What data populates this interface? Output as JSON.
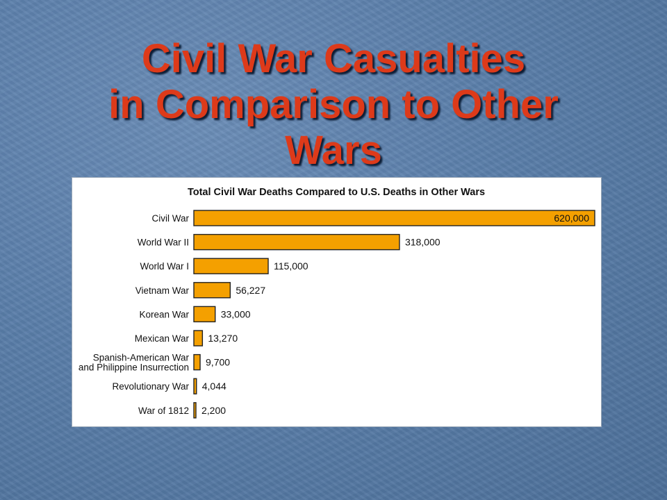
{
  "slide": {
    "title_lines": [
      "Civil War Casualties",
      "in Comparison to Other",
      "Wars"
    ]
  },
  "colors": {
    "background": "#5a7ea9",
    "title": "#dd3a1a",
    "bar": "#f4a000",
    "panel": "#ffffff"
  },
  "chart_data": {
    "type": "bar",
    "orientation": "horizontal",
    "title": "Total Civil War Deaths Compared to U.S. Deaths in Other Wars",
    "xlabel": "",
    "ylabel": "",
    "grid": false,
    "legend": "none",
    "xlim": [
      0,
      620000
    ],
    "categories": [
      [
        "Civil War"
      ],
      [
        "World War II"
      ],
      [
        "World War I"
      ],
      [
        "Vietnam War"
      ],
      [
        "Korean War"
      ],
      [
        "Mexican War"
      ],
      [
        "Spanish-American War",
        "and Philippine Insurrection"
      ],
      [
        "Revolutionary War"
      ],
      [
        "War of 1812"
      ]
    ],
    "values": [
      620000,
      318000,
      115000,
      56227,
      33000,
      13270,
      9700,
      4044,
      2200
    ],
    "value_labels": [
      "620,000",
      "318,000",
      "115,000",
      "56,227",
      "33,000",
      "13,270",
      "9,700",
      "4,044",
      "2,200"
    ]
  }
}
